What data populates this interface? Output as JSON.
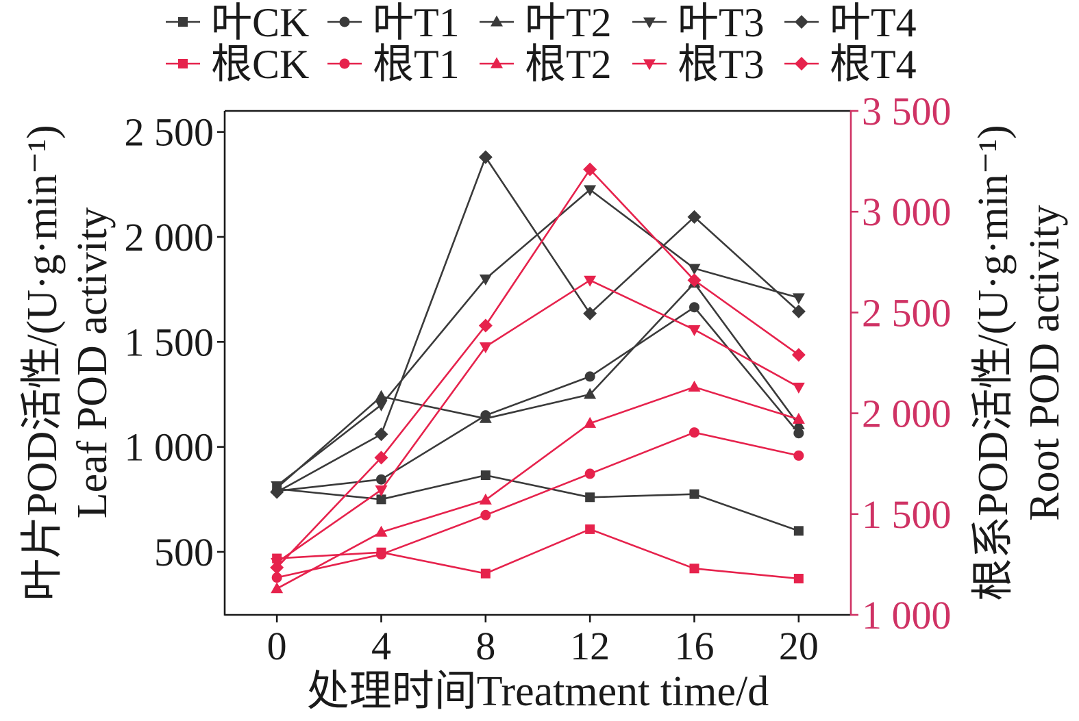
{
  "chart_data": {
    "type": "line",
    "x": [
      0,
      4,
      8,
      12,
      16,
      20
    ],
    "xlabel": "处理时间Treatment time/d",
    "xlim": [
      -2,
      22
    ],
    "xticks": [
      0,
      4,
      8,
      12,
      16,
      20
    ],
    "y_left": {
      "label_cn": "叶片POD活性/(U·g·min⁻¹)",
      "label_en": "Leaf POD activity",
      "lim": [
        200,
        2600
      ],
      "ticks": [
        500,
        1000,
        1500,
        2000,
        2500
      ],
      "tick_labels": [
        "500",
        "1 000",
        "1 500",
        "2 000",
        "2 500"
      ],
      "color": "#1a1a1a"
    },
    "y_right": {
      "label_cn": "根系POD活性/(U·g·min⁻¹)",
      "label_en": "Root POD activity",
      "lim": [
        1000,
        3500
      ],
      "ticks": [
        1000,
        1500,
        2000,
        2500,
        3000,
        3500
      ],
      "tick_labels": [
        "1 000",
        "1 500",
        "2 000",
        "2 500",
        "3 000",
        "3 500"
      ],
      "color": "#cf3264"
    },
    "grid": false,
    "legend": "top",
    "series": [
      {
        "name": "叶CK",
        "axis": "left",
        "marker": "square",
        "color": "#3a3a3a",
        "values": [
          800,
          750,
          865,
          760,
          775,
          600
        ]
      },
      {
        "name": "叶T1",
        "axis": "left",
        "marker": "circle",
        "color": "#3a3a3a",
        "values": [
          790,
          845,
          1150,
          1335,
          1665,
          1065
        ]
      },
      {
        "name": "叶T2",
        "axis": "left",
        "marker": "triangle-up",
        "color": "#3a3a3a",
        "values": [
          805,
          1240,
          1135,
          1250,
          1780,
          1105
        ]
      },
      {
        "name": "叶T3",
        "axis": "left",
        "marker": "triangle-down",
        "color": "#3a3a3a",
        "values": [
          815,
          1200,
          1800,
          2225,
          1850,
          1710
        ]
      },
      {
        "name": "叶T4",
        "axis": "left",
        "marker": "diamond",
        "color": "#3a3a3a",
        "values": [
          785,
          1060,
          2380,
          1635,
          2095,
          1645
        ]
      },
      {
        "name": "根CK",
        "axis": "right",
        "marker": "square",
        "color": "#e6224c",
        "values": [
          1280,
          1310,
          1205,
          1425,
          1230,
          1180
        ]
      },
      {
        "name": "根T1",
        "axis": "right",
        "marker": "circle",
        "color": "#e6224c",
        "values": [
          1185,
          1300,
          1495,
          1700,
          1905,
          1790
        ]
      },
      {
        "name": "根T2",
        "axis": "right",
        "marker": "triangle-up",
        "color": "#e6224c",
        "values": [
          1130,
          1410,
          1570,
          1950,
          2130,
          1970
        ]
      },
      {
        "name": "根T3",
        "axis": "right",
        "marker": "triangle-down",
        "color": "#e6224c",
        "values": [
          1260,
          1620,
          2330,
          2660,
          2415,
          2130
        ]
      },
      {
        "name": "根T4",
        "axis": "right",
        "marker": "diamond",
        "color": "#e6224c",
        "values": [
          1235,
          1780,
          2435,
          3210,
          2660,
          2290
        ]
      }
    ]
  }
}
